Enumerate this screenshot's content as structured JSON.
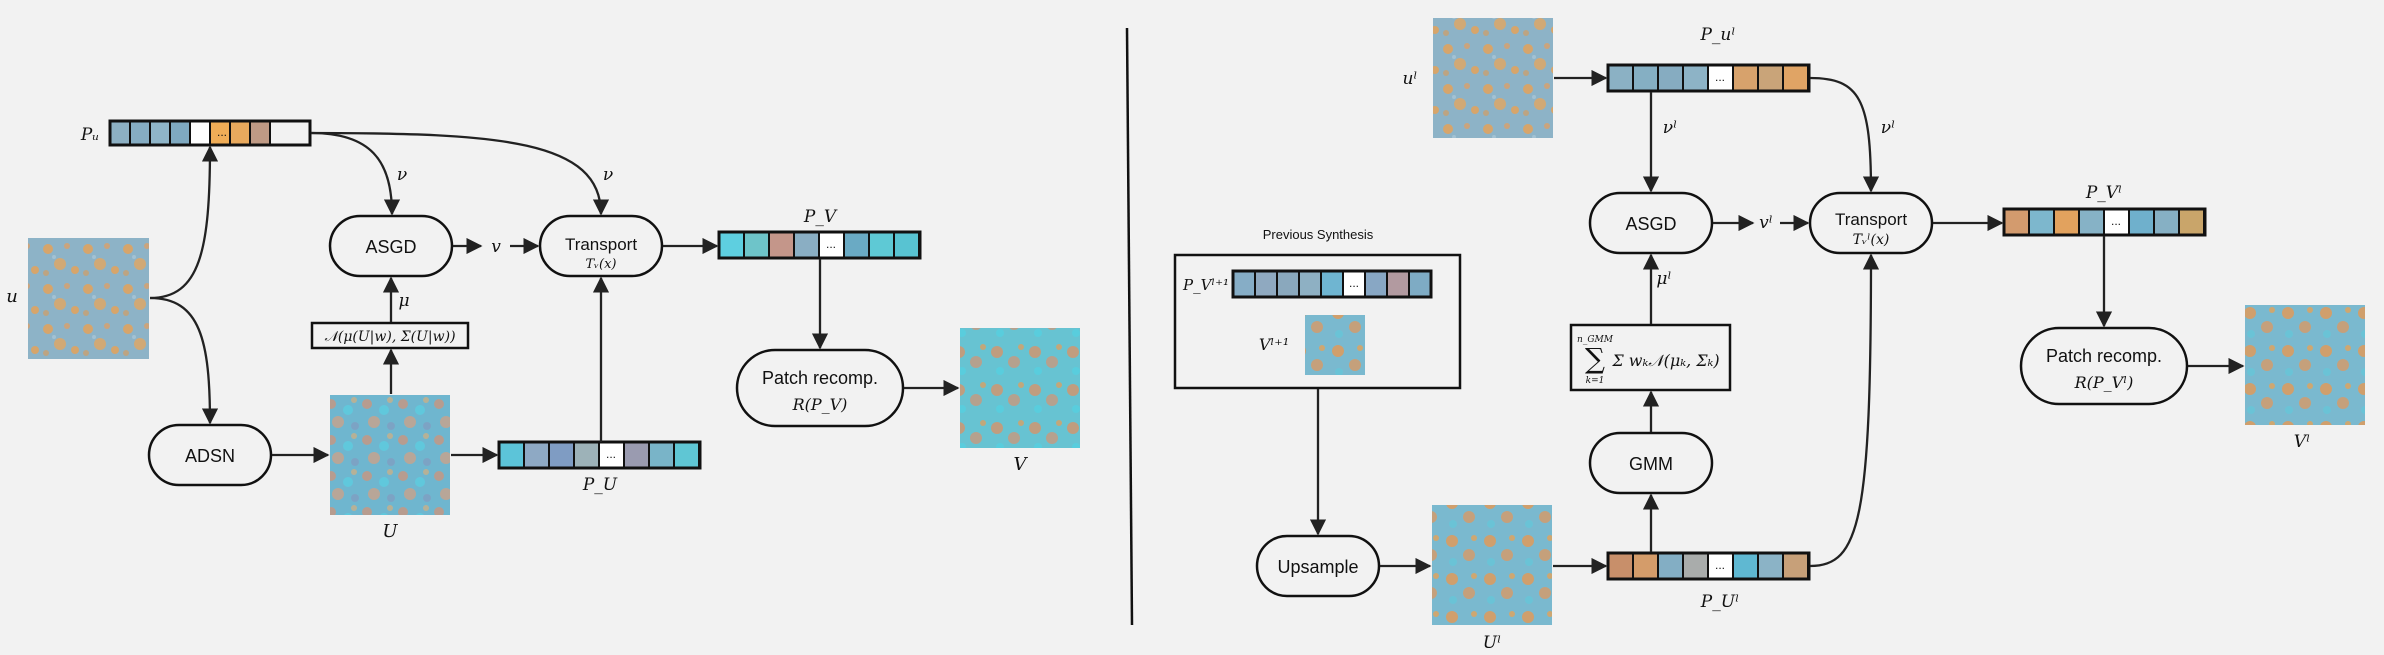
{
  "colors": {
    "background": "#f2f2f2",
    "texture_base": "#8db3c7",
    "texture_orange": "#e3a25a",
    "texture_cyan": "#5fc9d6"
  },
  "left": {
    "u": "u",
    "P_u": "Pᵤ",
    "nu_1": "ν",
    "nu_2": "ν",
    "asgd": "ASGD",
    "v": "v",
    "transport": "Transport",
    "transport_fn": "Tᵥ(x)",
    "P_V": "P_V",
    "mu": "μ",
    "gaussian": "𝒩(μ(U|w), Σ(U|w))",
    "adsn": "ADSN",
    "U": "U",
    "P_U": "P_U",
    "patch_recomp": "Patch recomp.",
    "patch_recomp_fn": "R(P_V)",
    "V": "V",
    "ellipsis": "..."
  },
  "right": {
    "u_l": "uˡ",
    "P_ul": "P_uˡ",
    "nu_l_1": "νˡ",
    "nu_l_2": "νˡ",
    "asgd": "ASGD",
    "v_l": "vˡ",
    "transport": "Transport",
    "transport_fn": "Tᵥˡ(x)",
    "P_Vl": "P_Vˡ",
    "mu_l": "μˡ",
    "gmm_formula": "Σ wₖ𝒩(μₖ, Σₖ)",
    "gmm_sum_top": "n_GMM",
    "gmm_sum_bottom": "k=1",
    "gmm": "GMM",
    "previous_synthesis": "Previous Synthesis",
    "P_Vl1": "P_Vˡ⁺¹",
    "V_l1": "Vˡ⁺¹",
    "upsample": "Upsample",
    "U_l": "Uˡ",
    "P_Ul": "P_Uˡ",
    "patch_recomp": "Patch recomp.",
    "patch_recomp_fn": "R(P_Vˡ)",
    "V_l": "Vˡ",
    "ellipsis": "..."
  }
}
